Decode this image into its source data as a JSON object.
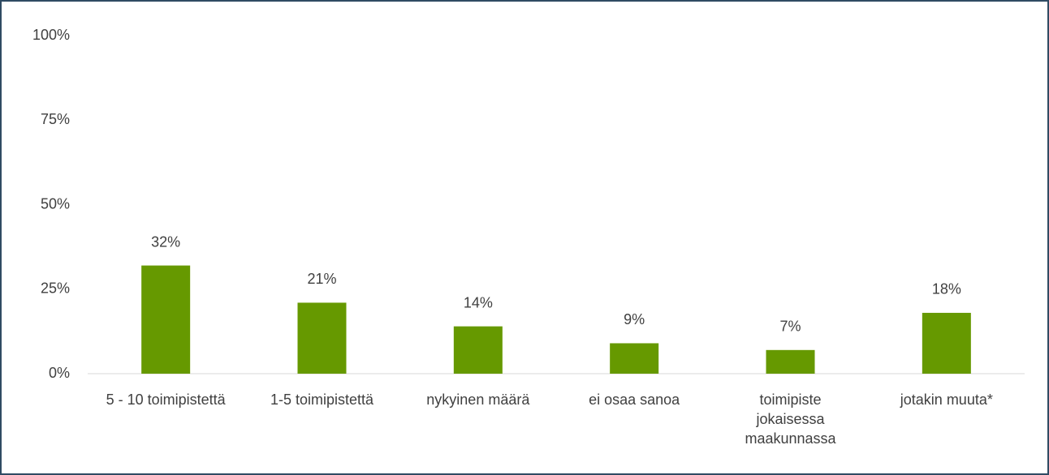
{
  "chart_data": {
    "type": "bar",
    "categories": [
      "5 - 10 toimipistettä",
      "1-5 toimipistettä",
      "nykyinen määrä",
      "ei osaa sanoa",
      "toimipiste jokaisessa maakunnassa",
      "jotakin muuta*"
    ],
    "values": [
      32,
      21,
      14,
      9,
      7,
      18
    ],
    "value_labels": [
      "32%",
      "21%",
      "14%",
      "9%",
      "7%",
      "18%"
    ],
    "color": "#669900",
    "ylim": [
      0,
      100
    ],
    "yticks": [
      {
        "value": 0,
        "label": "0%"
      },
      {
        "value": 25,
        "label": "25%"
      },
      {
        "value": 50,
        "label": "50%"
      },
      {
        "value": 75,
        "label": "75%"
      },
      {
        "value": 100,
        "label": "100%"
      }
    ],
    "grid": false
  }
}
